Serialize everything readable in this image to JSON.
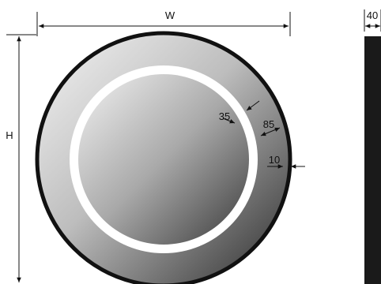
{
  "labels": {
    "width": "W",
    "height": "H",
    "depth": "40",
    "ring_inset": "35",
    "ring_width": "85",
    "edge_offset": "10"
  },
  "colors": {
    "frame": "#111111",
    "led_ring": "#ffffff",
    "line": "#111111",
    "profile": "#1a1a1a"
  }
}
